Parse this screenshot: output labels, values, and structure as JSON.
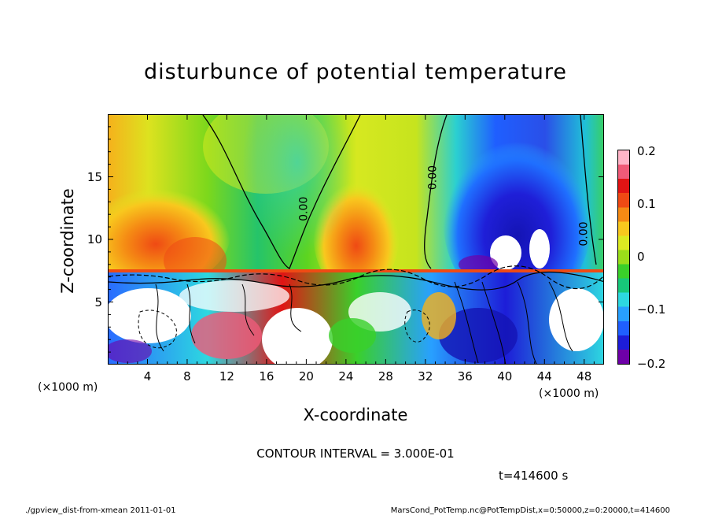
{
  "chart_data": {
    "type": "heatmap",
    "title": "disturbunce of potential temperature",
    "xlabel": "X-coordinate",
    "ylabel": "Z-coordinate",
    "x_unit": "(×1000 m)",
    "z_unit": "(×1000 m)",
    "x_ticks": [
      "4",
      "8",
      "12",
      "16",
      "20",
      "24",
      "28",
      "32",
      "36",
      "40",
      "44",
      "48"
    ],
    "z_ticks": [
      "5",
      "10",
      "15"
    ],
    "xlim": [
      0,
      50
    ],
    "zlim": [
      0,
      20
    ],
    "colorbar": {
      "ticks": [
        "0.2",
        "0.1",
        "0",
        "−0.1",
        "−0.2"
      ],
      "range": [
        -0.2,
        0.2
      ],
      "colors": [
        "#6e00a8",
        "#1d1dd8",
        "#1f5fff",
        "#28a0ff",
        "#2dd8e0",
        "#17c87a",
        "#3ad02a",
        "#9ade1a",
        "#dcea22",
        "#f8c81e",
        "#f58a14",
        "#ef4a14",
        "#e11414",
        "#f05a78",
        "#ffb4c8"
      ]
    },
    "contour_labels": [
      {
        "text": "0.00",
        "x": 20.0,
        "z": 12.5
      },
      {
        "text": "0.00",
        "x": 33.0,
        "z": 15.0
      },
      {
        "text": "0.00",
        "x": 48.2,
        "z": 10.5
      }
    ],
    "contour_interval": "CONTOUR INTERVAL = 3.000E-01",
    "time": "t=414600 s"
  },
  "footer": {
    "left": "./gpview_dist-from-xmean  2011-01-01",
    "right": "MarsCond_PotTemp.nc@PotTempDist,x=0:50000,z=0:20000,t=414600"
  }
}
